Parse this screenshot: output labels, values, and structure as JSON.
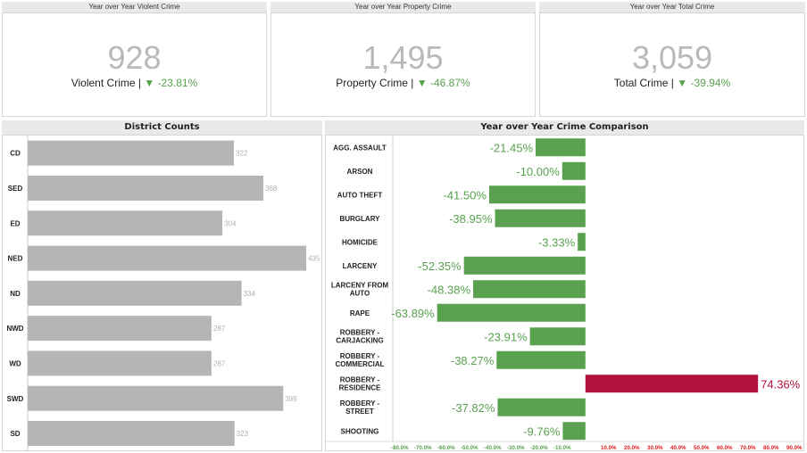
{
  "kpis": [
    {
      "header": "Year over Year Violent Crime",
      "value": "928",
      "label": "Violent Crime |",
      "arrow": "▼",
      "change": "-23.81%"
    },
    {
      "header": "Year over Year Property Crime",
      "value": "1,495",
      "label": "Property Crime |",
      "arrow": "▼",
      "change": "-46.87%"
    },
    {
      "header": "Year over Year Total Crime",
      "value": "3,059",
      "label": "Total Crime |",
      "arrow": "▼",
      "change": "-39.94%"
    }
  ],
  "colors": {
    "positive_good": "#59a14f",
    "negative_bad": "#b0123b",
    "bar_gray": "#b5b5b5",
    "kpi_gray": "#b9b9b9"
  },
  "chart_data": [
    {
      "type": "bar",
      "title": "District Counts",
      "orientation": "horizontal",
      "categories": [
        "CD",
        "SED",
        "ED",
        "NED",
        "ND",
        "NWD",
        "WD",
        "SWD",
        "SD"
      ],
      "values": [
        322,
        368,
        304,
        435,
        334,
        287,
        287,
        399,
        323
      ],
      "data_labels": [
        "322",
        "368",
        "304",
        "435",
        "334",
        "287",
        "287",
        "399",
        "323"
      ],
      "xlim": [
        0,
        460
      ],
      "grid": false,
      "color": "#b5b5b5"
    },
    {
      "type": "bar",
      "title": "Year over Year Crime Comparison",
      "orientation": "horizontal",
      "categories": [
        "AGG. ASSAULT",
        "ARSON",
        "AUTO THEFT",
        "BURGLARY",
        "HOMICIDE",
        "LARCENY",
        "LARCENY FROM AUTO",
        "RAPE",
        "ROBBERY - CARJACKING",
        "ROBBERY - COMMERCIAL",
        "ROBBERY - RESIDENCE",
        "ROBBERY - STREET",
        "SHOOTING"
      ],
      "values": [
        -21.45,
        -10.0,
        -41.5,
        -38.95,
        -3.33,
        -52.35,
        -48.38,
        -63.89,
        -23.91,
        -38.27,
        74.36,
        -37.82,
        -9.76
      ],
      "data_labels": [
        "-21.45%",
        "-10.00%",
        "-41.50%",
        "-38.95%",
        "-3.33%",
        "-52.35%",
        "-48.38%",
        "-63.89%",
        "-23.91%",
        "-38.27%",
        "74.36%",
        "-37.82%",
        "-9.76%"
      ],
      "xlim": [
        -83,
        92
      ],
      "x_ticks": [
        -80,
        -70,
        -60,
        -50,
        -40,
        -30,
        -20,
        -10,
        10,
        20,
        30,
        40,
        50,
        60,
        70,
        80,
        90
      ],
      "x_tick_labels": [
        "-80.0%",
        "-70.0%",
        "-60.0%",
        "-50.0%",
        "-40.0%",
        "-30.0%",
        "-20.0%",
        "-10.0%",
        "10.0%",
        "20.0%",
        "30.0%",
        "40.0%",
        "50.0%",
        "60.0%",
        "70.0%",
        "80.0%",
        "90.0%"
      ],
      "grid": false,
      "colors": {
        "negative": "#59a14f",
        "positive": "#b0123b"
      }
    }
  ]
}
